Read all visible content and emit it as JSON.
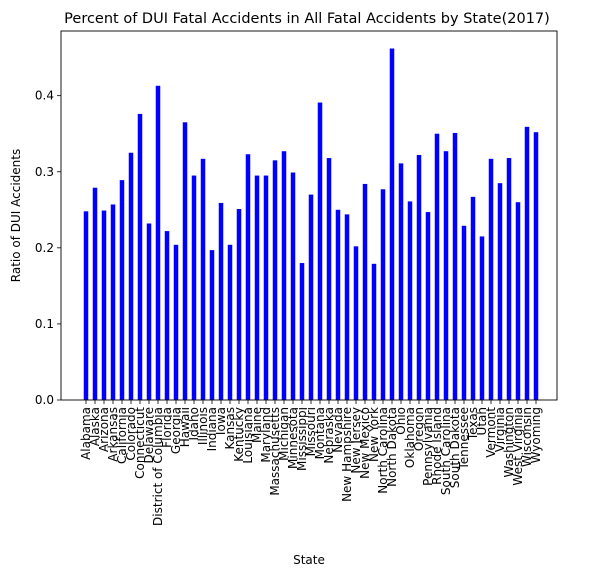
{
  "chart_data": {
    "type": "bar",
    "title": "Percent of DUI Fatal Accidents in All Fatal Accidents by State(2017)",
    "xlabel": "State",
    "ylabel": "Ratio of DUI Accidents",
    "ylim": [
      0,
      0.485
    ],
    "yticks": [
      0.0,
      0.1,
      0.2,
      0.3,
      0.4
    ],
    "ytick_labels": [
      "0.0",
      "0.1",
      "0.2",
      "0.3",
      "0.4"
    ],
    "grid": false,
    "bar_color": "#0000ff",
    "categories": [
      "Alabama",
      "Alaska",
      "Arizona",
      "Arkansas",
      "California",
      "Colorado",
      "Connecticut",
      "Delaware",
      "District of Columbia",
      "Florida",
      "Georgia",
      "Hawaii",
      "Idaho",
      "Illinois",
      "Indiana",
      "Iowa",
      "Kansas",
      "Kentucky",
      "Louisiana",
      "Maine",
      "Maryland",
      "Massachusetts",
      "Michigan",
      "Minnesota",
      "Mississippi",
      "Missouri",
      "Montana",
      "Nebraska",
      "Nevada",
      "New Hampshire",
      "New Jersey",
      "New Mexico",
      "New York",
      "North Carolina",
      "North Dakota",
      "Ohio",
      "Oklahoma",
      "Oregon",
      "Pennsylvania",
      "Rhode Island",
      "South Carolina",
      "South Dakota",
      "Tennessee",
      "Texas",
      "Utah",
      "Vermont",
      "Virginia",
      "Washington",
      "West Virginia",
      "Wisconsin",
      "Wyoming"
    ],
    "values": [
      0.248,
      0.279,
      0.249,
      0.257,
      0.289,
      0.325,
      0.376,
      0.232,
      0.413,
      0.222,
      0.204,
      0.365,
      0.295,
      0.317,
      0.197,
      0.259,
      0.204,
      0.251,
      0.323,
      0.295,
      0.295,
      0.315,
      0.327,
      0.299,
      0.18,
      0.27,
      0.391,
      0.318,
      0.25,
      0.244,
      0.202,
      0.284,
      0.179,
      0.277,
      0.462,
      0.311,
      0.261,
      0.322,
      0.247,
      0.35,
      0.327,
      0.351,
      0.229,
      0.267,
      0.215,
      0.317,
      0.285,
      0.318,
      0.26,
      0.359,
      0.352
    ]
  }
}
